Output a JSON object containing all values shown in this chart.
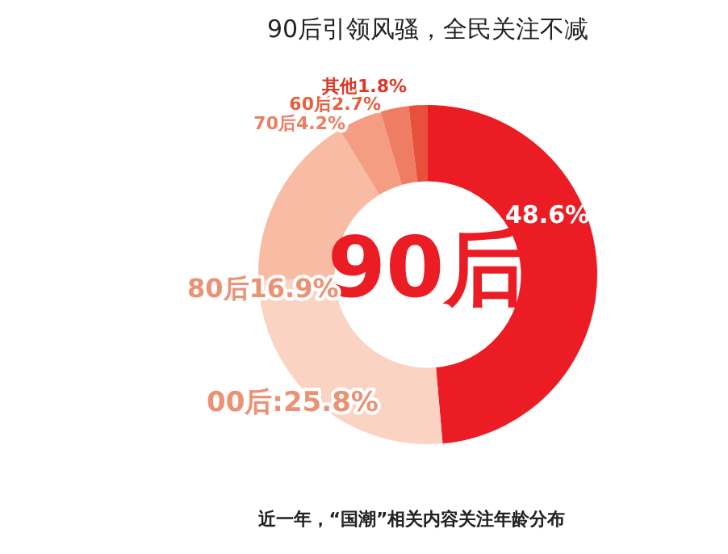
{
  "chart_data": {
    "type": "donut",
    "title": "90后引领风骚，全民关注不减",
    "categories": [
      "90后",
      "00后",
      "80后",
      "70后",
      "60后",
      "其他"
    ],
    "values": [
      48.6,
      25.8,
      16.9,
      4.2,
      2.7,
      1.8
    ],
    "colors": [
      "#ec1c24",
      "#fbd3c2",
      "#f8bba4",
      "#f49d83",
      "#ef7d63",
      "#e9503c"
    ],
    "value_labels": [
      "48.6%",
      ":25.8%",
      "16.9%",
      "4.2%",
      "2.7%",
      "1.8%"
    ],
    "annotations": [
      "近一年，“国潮”相关内容关注年龄分布"
    ],
    "legend": false
  }
}
